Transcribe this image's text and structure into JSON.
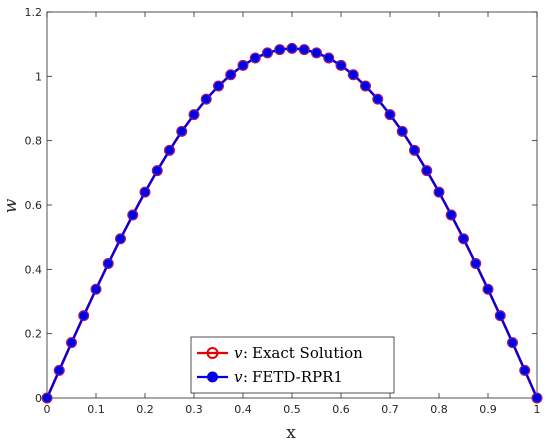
{
  "chart_data": {
    "type": "line",
    "xlabel": "x",
    "ylabel": "w",
    "xlim": [
      0,
      1
    ],
    "ylim": [
      0,
      1.2
    ],
    "xticks": [
      0,
      0.1,
      0.2,
      0.3,
      0.4,
      0.5,
      0.6,
      0.7,
      0.8,
      0.9,
      1
    ],
    "xtick_labels": [
      "0",
      "0.1",
      "0.2",
      "0.3",
      "0.4",
      "0.5",
      "0.6",
      "0.7",
      "0.8",
      "0.9",
      "1"
    ],
    "yticks": [
      0,
      0.2,
      0.4,
      0.6,
      0.8,
      1,
      1.2
    ],
    "ytick_labels": [
      "0",
      "0.2",
      "0.4",
      "0.6",
      "0.8",
      "1",
      "1.2"
    ],
    "grid": false,
    "legend_position": "bottom-center",
    "x": [
      0,
      0.025,
      0.05,
      0.075,
      0.1,
      0.125,
      0.15,
      0.175,
      0.2,
      0.225,
      0.25,
      0.275,
      0.3,
      0.325,
      0.35,
      0.375,
      0.4,
      0.425,
      0.45,
      0.475,
      0.5,
      0.525,
      0.55,
      0.575,
      0.6,
      0.625,
      0.65,
      0.675,
      0.7,
      0.725,
      0.75,
      0.775,
      0.8,
      0.825,
      0.85,
      0.875,
      0.9,
      0.925,
      0.95,
      0.975,
      1
    ],
    "series": [
      {
        "name": "Exact Solution",
        "var": "v",
        "color": "#e60000",
        "marker": "circle",
        "values": [
          0,
          0.086,
          0.172,
          0.256,
          0.338,
          0.418,
          0.495,
          0.569,
          0.64,
          0.707,
          0.77,
          0.829,
          0.881,
          0.929,
          0.97,
          1.005,
          1.034,
          1.057,
          1.073,
          1.083,
          1.087,
          1.083,
          1.073,
          1.057,
          1.034,
          1.005,
          0.97,
          0.929,
          0.881,
          0.829,
          0.77,
          0.707,
          0.64,
          0.569,
          0.495,
          0.418,
          0.338,
          0.256,
          0.172,
          0.086,
          0
        ]
      },
      {
        "name": "FETD-RPR1",
        "var": "v",
        "color": "#0000e6",
        "marker": "filled-circle",
        "values": [
          0,
          0.086,
          0.172,
          0.256,
          0.338,
          0.418,
          0.495,
          0.569,
          0.64,
          0.707,
          0.77,
          0.829,
          0.881,
          0.929,
          0.97,
          1.005,
          1.034,
          1.057,
          1.073,
          1.083,
          1.087,
          1.083,
          1.073,
          1.057,
          1.034,
          1.005,
          0.97,
          0.929,
          0.881,
          0.829,
          0.77,
          0.707,
          0.64,
          0.569,
          0.495,
          0.418,
          0.338,
          0.256,
          0.172,
          0.086,
          0
        ]
      }
    ]
  }
}
